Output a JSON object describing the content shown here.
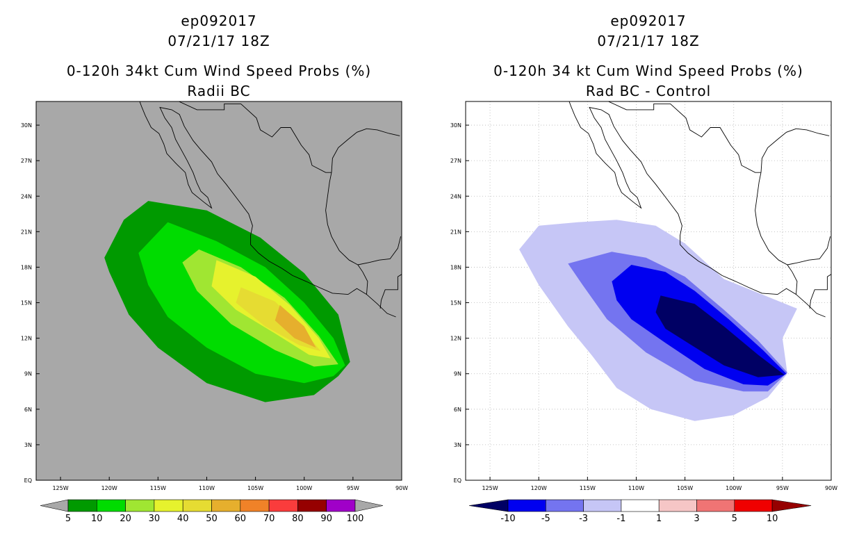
{
  "chart_data": [
    {
      "type": "contour-map",
      "panel": "left",
      "title_lines": [
        "ep092017",
        "07/21/17 18Z",
        "0-120h 34kt Cum Wind Speed Probs (%)",
        "Radii BC"
      ],
      "x_ticks": [
        "125W",
        "120W",
        "115W",
        "110W",
        "105W",
        "100W",
        "95W",
        "90W"
      ],
      "y_ticks": [
        "EQ",
        "3N",
        "6N",
        "9N",
        "12N",
        "15N",
        "18N",
        "21N",
        "24N",
        "27N",
        "30N"
      ],
      "xlim_lon": [
        -127.5,
        -90
      ],
      "ylim_lat": [
        0,
        32
      ],
      "colorbar": {
        "labels": [
          "5",
          "10",
          "20",
          "30",
          "40",
          "50",
          "60",
          "70",
          "80",
          "90",
          "100"
        ],
        "colors": [
          "#009a00",
          "#00dc00",
          "#a0e632",
          "#e6f22d",
          "#e6dc32",
          "#e6af2d",
          "#f08228",
          "#fa3c3c",
          "#960000",
          "#a000c8"
        ]
      },
      "levels_shown": [
        {
          "level": 5,
          "color": "#009a00",
          "polygon_lonlat": [
            [
              -116,
              23.6
            ],
            [
              -110,
              22.8
            ],
            [
              -104.5,
              20.5
            ],
            [
              -100,
              17.5
            ],
            [
              -96.5,
              14
            ],
            [
              -95.3,
              10
            ],
            [
              -96.5,
              8.8
            ],
            [
              -99,
              7.2
            ],
            [
              -104,
              6.6
            ],
            [
              -110,
              8.2
            ],
            [
              -115,
              11.2
            ],
            [
              -118,
              14
            ],
            [
              -120,
              17.6
            ],
            [
              -120.5,
              18.8
            ],
            [
              -118.5,
              22
            ]
          ]
        },
        {
          "level": 10,
          "color": "#00dc00",
          "polygon_lonlat": [
            [
              -114,
              21.8
            ],
            [
              -109,
              20.2
            ],
            [
              -104,
              18
            ],
            [
              -100,
              15
            ],
            [
              -97,
              12
            ],
            [
              -95.8,
              9.7
            ],
            [
              -97,
              8.8
            ],
            [
              -100,
              8.2
            ],
            [
              -105,
              9
            ],
            [
              -110,
              11.2
            ],
            [
              -114,
              13.8
            ],
            [
              -116,
              16.5
            ],
            [
              -117,
              19.2
            ]
          ]
        },
        {
          "level": 20,
          "color": "#a0e632",
          "polygon_lonlat": [
            [
              -110.8,
              19.5
            ],
            [
              -106.5,
              18
            ],
            [
              -102,
              15.4
            ],
            [
              -98.5,
              12.2
            ],
            [
              -96.5,
              9.8
            ],
            [
              -99,
              9.6
            ],
            [
              -103,
              11
            ],
            [
              -107.5,
              13.2
            ],
            [
              -111,
              16
            ],
            [
              -112.5,
              18.4
            ]
          ]
        },
        {
          "level": 30,
          "color": "#e6f22d",
          "polygon_lonlat": [
            [
              -109,
              18.6
            ],
            [
              -105,
              17.2
            ],
            [
              -101.5,
              14.8
            ],
            [
              -98.5,
              12
            ],
            [
              -97.3,
              10.3
            ],
            [
              -99.5,
              10.6
            ],
            [
              -103,
              12.4
            ],
            [
              -107,
              14.4
            ],
            [
              -109.5,
              16.4
            ]
          ]
        },
        {
          "level": 40,
          "color": "#e6dc32",
          "polygon_lonlat": [
            [
              -106.5,
              16.3
            ],
            [
              -103,
              15.1
            ],
            [
              -100.3,
              12.9
            ],
            [
              -98.3,
              10.9
            ],
            [
              -100.5,
              11.4
            ],
            [
              -104,
              13
            ],
            [
              -107,
              15
            ]
          ]
        },
        {
          "level": 50,
          "color": "#e6af2d",
          "polygon_lonlat": [
            [
              -102.5,
              14.8
            ],
            [
              -100,
              13
            ],
            [
              -98.8,
              11.2
            ],
            [
              -101,
              12
            ],
            [
              -103,
              13.5
            ]
          ]
        }
      ]
    },
    {
      "type": "contour-map",
      "panel": "right",
      "title_lines": [
        "ep092017",
        "07/21/17 18Z",
        "0-120h 34 kt Cum Wind Speed Probs (%)",
        "Rad BC - Control"
      ],
      "x_ticks": [
        "125W",
        "120W",
        "115W",
        "110W",
        "105W",
        "100W",
        "95W",
        "90W"
      ],
      "y_ticks": [
        "EQ",
        "3N",
        "6N",
        "9N",
        "12N",
        "15N",
        "18N",
        "21N",
        "24N",
        "27N",
        "30N"
      ],
      "xlim_lon": [
        -127.5,
        -90
      ],
      "ylim_lat": [
        0,
        32
      ],
      "colorbar": {
        "labels": [
          "-10",
          "-5",
          "-3",
          "-1",
          "1",
          "3",
          "5",
          "10"
        ],
        "colors": [
          "#000064",
          "#0000f0",
          "#7474f0",
          "#c6c6f6",
          "#ffffff",
          "#f6c6c6",
          "#f07474",
          "#f00000",
          "#960000"
        ]
      },
      "levels_shown": [
        {
          "level": -1,
          "color": "#c6c6f6",
          "polygon_lonlat": [
            [
              -112,
              22
            ],
            [
              -108,
              21.5
            ],
            [
              -105,
              20
            ],
            [
              -101,
              17
            ],
            [
              -96.5,
              15.5
            ],
            [
              -93.5,
              14.5
            ],
            [
              -95,
              12
            ],
            [
              -94.5,
              9
            ],
            [
              -96.5,
              7
            ],
            [
              -100,
              5.5
            ],
            [
              -104,
              5
            ],
            [
              -108.5,
              6
            ],
            [
              -112,
              7.8
            ],
            [
              -114.5,
              10.5
            ],
            [
              -117,
              13
            ],
            [
              -120,
              16.5
            ],
            [
              -122,
              19.5
            ],
            [
              -120,
              21.5
            ],
            [
              -116,
              21.8
            ]
          ]
        },
        {
          "level": -3,
          "color": "#7474f0",
          "polygon_lonlat": [
            [
              -112.5,
              19.3
            ],
            [
              -109,
              18.8
            ],
            [
              -105,
              17.2
            ],
            [
              -101,
              14.4
            ],
            [
              -97.5,
              11.8
            ],
            [
              -94.5,
              9.1
            ],
            [
              -96.5,
              7.5
            ],
            [
              -99,
              7.5
            ],
            [
              -104,
              8.4
            ],
            [
              -109,
              10.8
            ],
            [
              -113,
              13.6
            ],
            [
              -115.5,
              16.5
            ],
            [
              -117,
              18.3
            ]
          ]
        },
        {
          "level": -5,
          "color": "#0000f0",
          "polygon_lonlat": [
            [
              -110.5,
              18.2
            ],
            [
              -107,
              17.6
            ],
            [
              -104,
              16
            ],
            [
              -100.5,
              13.6
            ],
            [
              -97,
              11
            ],
            [
              -94.6,
              9
            ],
            [
              -96.5,
              8
            ],
            [
              -99,
              8.1
            ],
            [
              -103,
              9.4
            ],
            [
              -107,
              11.6
            ],
            [
              -110.5,
              13.6
            ],
            [
              -112,
              15.2
            ],
            [
              -112.5,
              16.8
            ]
          ]
        },
        {
          "level": -10,
          "color": "#000064",
          "polygon_lonlat": [
            [
              -107.5,
              15.6
            ],
            [
              -104,
              14.9
            ],
            [
              -101,
              13
            ],
            [
              -97.5,
              10.6
            ],
            [
              -94.8,
              8.9
            ],
            [
              -97.5,
              8.7
            ],
            [
              -101,
              9.7
            ],
            [
              -104.5,
              11.5
            ],
            [
              -107,
              12.8
            ],
            [
              -108,
              14.2
            ]
          ]
        }
      ]
    }
  ]
}
